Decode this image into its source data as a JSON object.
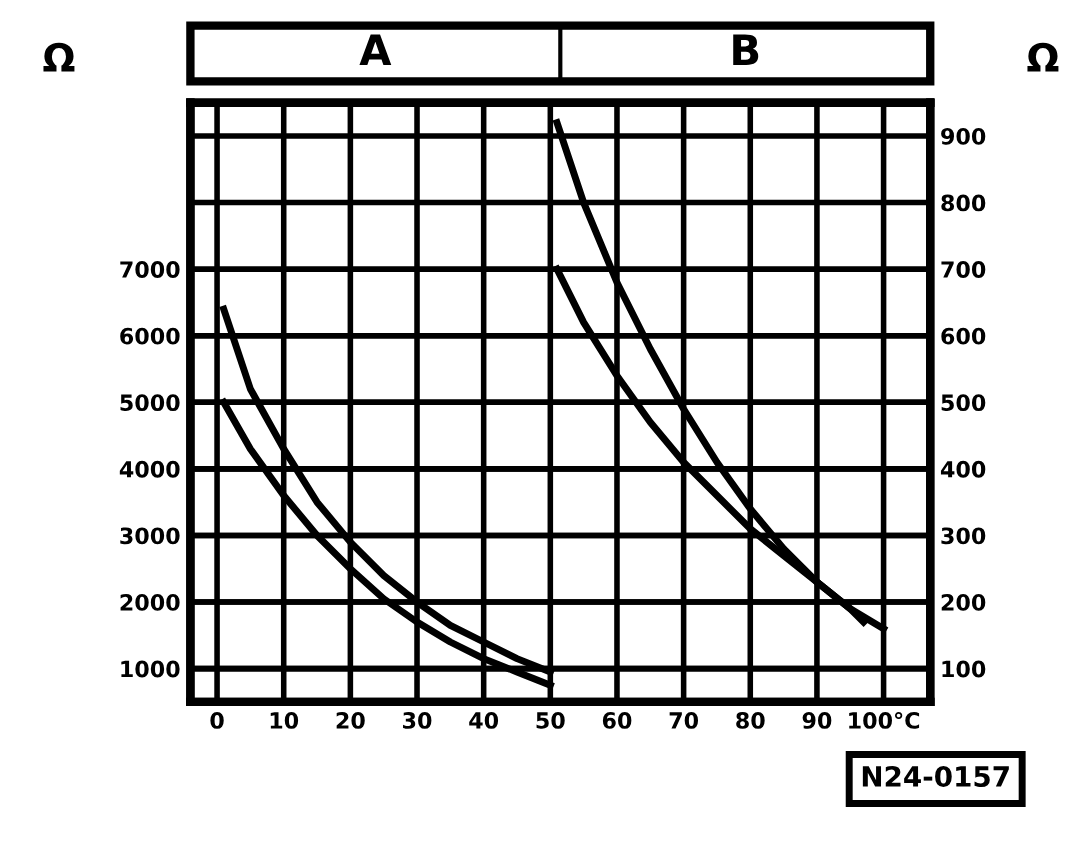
{
  "chart_data": {
    "type": "line",
    "ylabel": "Ω",
    "y2label": "Ω",
    "annotations": [
      "A",
      "B",
      "N24-0157"
    ],
    "xlim": [
      -4,
      107
    ],
    "xticks": [
      0,
      10,
      20,
      30,
      40,
      50,
      60,
      70,
      80,
      90,
      {
        "value": 100,
        "label": "100°C"
      }
    ],
    "ylim": [
      500,
      9500
    ],
    "yticks": [
      1000,
      2000,
      3000,
      4000,
      5000,
      6000,
      7000
    ],
    "y2lim": [
      50,
      950
    ],
    "y2ticks": [
      100,
      200,
      300,
      400,
      500,
      600,
      700,
      800,
      900
    ],
    "grid": true,
    "legend": false,
    "marker": "none",
    "line_style": "solid",
    "series": [
      {
        "color": "#000000",
        "x": [
          1,
          5,
          10,
          15,
          20,
          25,
          30,
          35,
          40,
          45,
          50
        ],
        "values": [
          6400,
          5200,
          4300,
          3500,
          2900,
          2400,
          2000,
          1650,
          1400,
          1150,
          950
        ]
      },
      {
        "color": "#000000",
        "x": [
          1,
          5,
          10,
          15,
          20,
          25,
          30,
          35,
          40,
          45,
          50
        ],
        "values": [
          5000,
          4300,
          3600,
          3000,
          2500,
          2050,
          1700,
          1400,
          1150,
          950,
          750
        ]
      },
      {
        "color": "#000000",
        "axis": "y2",
        "x": [
          51,
          55,
          60,
          65,
          70,
          75,
          80,
          85,
          90,
          95,
          97
        ],
        "values": [
          920,
          800,
          680,
          580,
          490,
          410,
          340,
          280,
          230,
          190,
          170
        ]
      },
      {
        "color": "#000000",
        "axis": "y2",
        "x": [
          51,
          55,
          60,
          65,
          70,
          75,
          80,
          85,
          90,
          95,
          100
        ],
        "values": [
          700,
          620,
          540,
          470,
          410,
          360,
          310,
          270,
          230,
          190,
          160
        ]
      }
    ]
  }
}
